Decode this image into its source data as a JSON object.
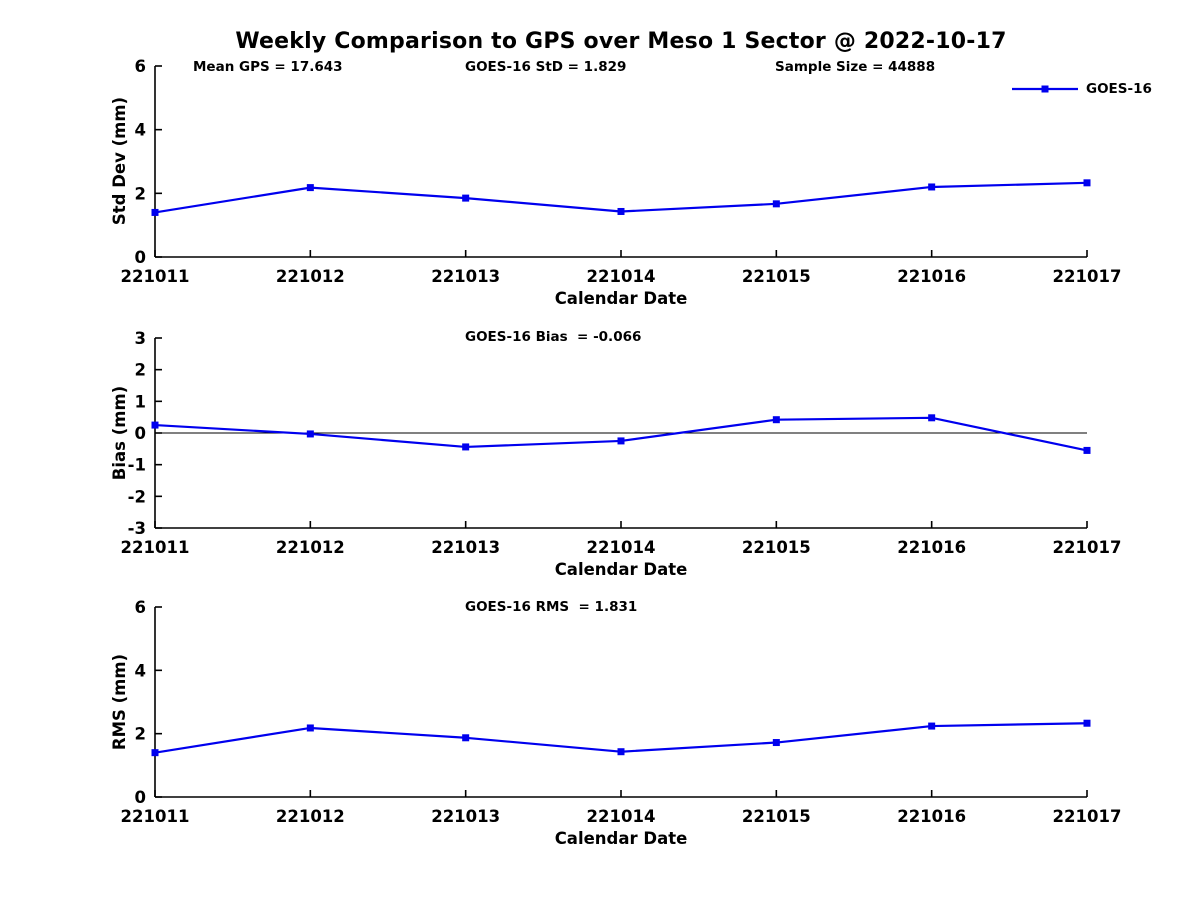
{
  "title": "Weekly Comparison to GPS over Meso 1 Sector @ 2022-10-17",
  "header_stats": {
    "mean_gps": "Mean GPS = 17.643",
    "goes16_std": "GOES-16 StD = 1.829",
    "sample_size": "Sample Size = 44888"
  },
  "legend": {
    "label": "GOES-16",
    "marker": "square",
    "position": "top-right"
  },
  "colors": {
    "line": "#0000ee",
    "axis": "#000000",
    "text": "#000000",
    "background": "#ffffff"
  },
  "chart_data": [
    {
      "type": "line",
      "name": "std-dev-vs-date",
      "ylabel": "Std Dev (mm)",
      "xlabel": "Calendar Date",
      "categories": [
        "221011",
        "221012",
        "221013",
        "221014",
        "221015",
        "221016",
        "221017"
      ],
      "series": [
        {
          "name": "GOES-16",
          "values": [
            1.4,
            2.18,
            1.85,
            1.43,
            1.67,
            2.2,
            2.33
          ]
        }
      ],
      "ylim": [
        0,
        6
      ],
      "yticks": [
        0,
        2,
        4,
        6
      ],
      "zero_line": false,
      "grid": false,
      "marker": "square"
    },
    {
      "type": "line",
      "name": "bias-vs-date",
      "annotation": "GOES-16 Bias  = -0.066",
      "ylabel": "Bias (mm)",
      "xlabel": "Calendar Date",
      "categories": [
        "221011",
        "221012",
        "221013",
        "221014",
        "221015",
        "221016",
        "221017"
      ],
      "series": [
        {
          "name": "GOES-16",
          "values": [
            0.25,
            -0.03,
            -0.44,
            -0.25,
            0.42,
            0.48,
            -0.55
          ]
        }
      ],
      "ylim": [
        -3,
        3
      ],
      "yticks": [
        3,
        2,
        1,
        0,
        -1,
        -2,
        -3
      ],
      "zero_line": true,
      "grid": false,
      "marker": "square"
    },
    {
      "type": "line",
      "name": "rms-vs-date",
      "annotation": "GOES-16 RMS  = 1.831",
      "ylabel": "RMS (mm)",
      "xlabel": "Calendar Date",
      "categories": [
        "221011",
        "221012",
        "221013",
        "221014",
        "221015",
        "221016",
        "221017"
      ],
      "series": [
        {
          "name": "GOES-16",
          "values": [
            1.4,
            2.18,
            1.87,
            1.43,
            1.72,
            2.24,
            2.33
          ]
        }
      ],
      "ylim": [
        0,
        6
      ],
      "yticks": [
        0,
        2,
        4,
        6
      ],
      "zero_line": false,
      "grid": false,
      "marker": "square"
    }
  ]
}
